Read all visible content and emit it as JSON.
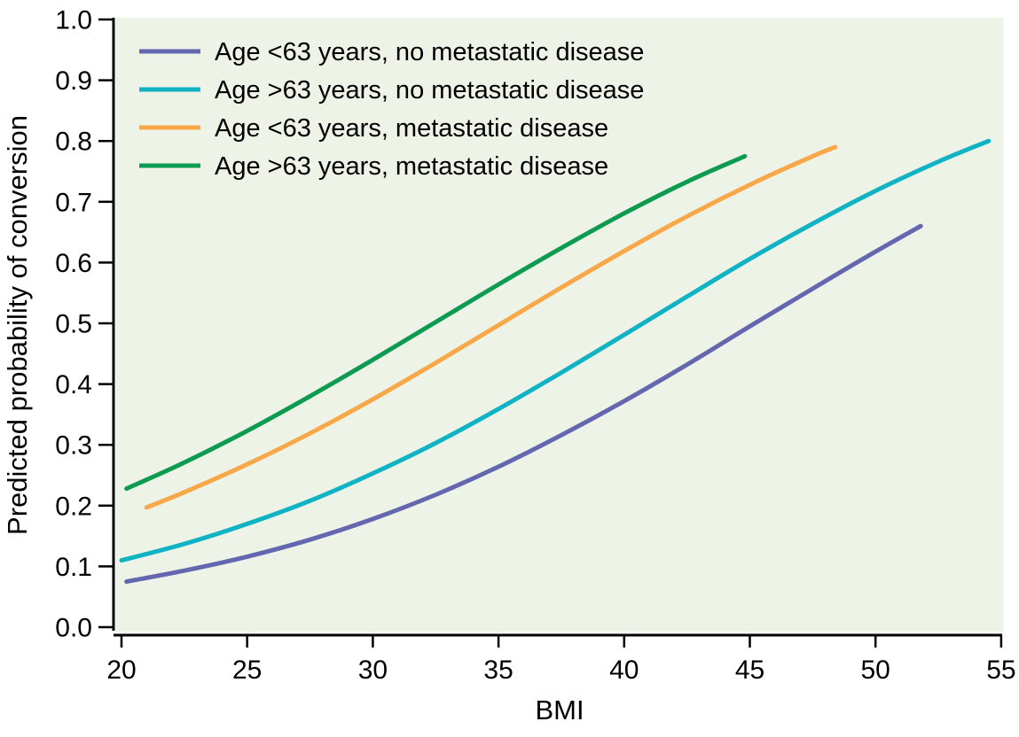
{
  "chart_data": {
    "type": "line",
    "title": "",
    "xlabel": "BMI",
    "ylabel": "Predicted probability of conversion",
    "xlim": [
      20,
      55
    ],
    "ylim": [
      0.0,
      1.0
    ],
    "grid": false,
    "legend_position": "top-left",
    "plot_bg": "#edf3e6",
    "axis_color": "#000000",
    "x_ticks": [
      "20",
      "25",
      "30",
      "35",
      "40",
      "45",
      "50",
      "55"
    ],
    "y_ticks": [
      "0.0",
      "0.1",
      "0.2",
      "0.3",
      "0.4",
      "0.5",
      "0.6",
      "0.7",
      "0.8",
      "0.9",
      "1.0"
    ],
    "series": [
      {
        "id": "age-lt63-no-mets",
        "name": "Age <63 years, no metastatic disease",
        "color": "#6467af",
        "points": [
          [
            20.2,
            0.075
          ],
          [
            22.5,
            0.093
          ],
          [
            25,
            0.116
          ],
          [
            27.5,
            0.144
          ],
          [
            30,
            0.178
          ],
          [
            32.5,
            0.218
          ],
          [
            35,
            0.264
          ],
          [
            37.5,
            0.316
          ],
          [
            40,
            0.372
          ],
          [
            42.5,
            0.432
          ],
          [
            45,
            0.495
          ],
          [
            47.5,
            0.557
          ],
          [
            50,
            0.618
          ],
          [
            51.8,
            0.66
          ]
        ]
      },
      {
        "id": "age-gt63-no-mets",
        "name": "Age >63 years, no metastatic disease",
        "color": "#0fb3c4",
        "points": [
          [
            20,
            0.11
          ],
          [
            22.5,
            0.137
          ],
          [
            25,
            0.17
          ],
          [
            27.5,
            0.208
          ],
          [
            30,
            0.253
          ],
          [
            32.5,
            0.303
          ],
          [
            35,
            0.359
          ],
          [
            37.5,
            0.419
          ],
          [
            40,
            0.481
          ],
          [
            42.5,
            0.544
          ],
          [
            45,
            0.606
          ],
          [
            47.5,
            0.664
          ],
          [
            50,
            0.718
          ],
          [
            52.5,
            0.766
          ],
          [
            54.5,
            0.8
          ]
        ]
      },
      {
        "id": "age-lt63-mets",
        "name": "Age <63 years, metastatic disease",
        "color": "#f8a848",
        "points": [
          [
            21,
            0.197
          ],
          [
            22.5,
            0.222
          ],
          [
            25,
            0.268
          ],
          [
            27.5,
            0.319
          ],
          [
            30,
            0.375
          ],
          [
            32.5,
            0.435
          ],
          [
            35,
            0.497
          ],
          [
            37.5,
            0.559
          ],
          [
            40,
            0.619
          ],
          [
            42.5,
            0.676
          ],
          [
            45,
            0.728
          ],
          [
            47.5,
            0.775
          ],
          [
            48.4,
            0.79
          ]
        ]
      },
      {
        "id": "age-gt63-mets",
        "name": "Age >63 years, metastatic disease",
        "color": "#0d9b52",
        "points": [
          [
            20.2,
            0.228
          ],
          [
            22.5,
            0.271
          ],
          [
            25,
            0.323
          ],
          [
            27.5,
            0.38
          ],
          [
            30,
            0.44
          ],
          [
            32.5,
            0.502
          ],
          [
            35,
            0.564
          ],
          [
            37.5,
            0.624
          ],
          [
            40,
            0.681
          ],
          [
            42.5,
            0.733
          ],
          [
            44.8,
            0.775
          ]
        ]
      }
    ]
  }
}
